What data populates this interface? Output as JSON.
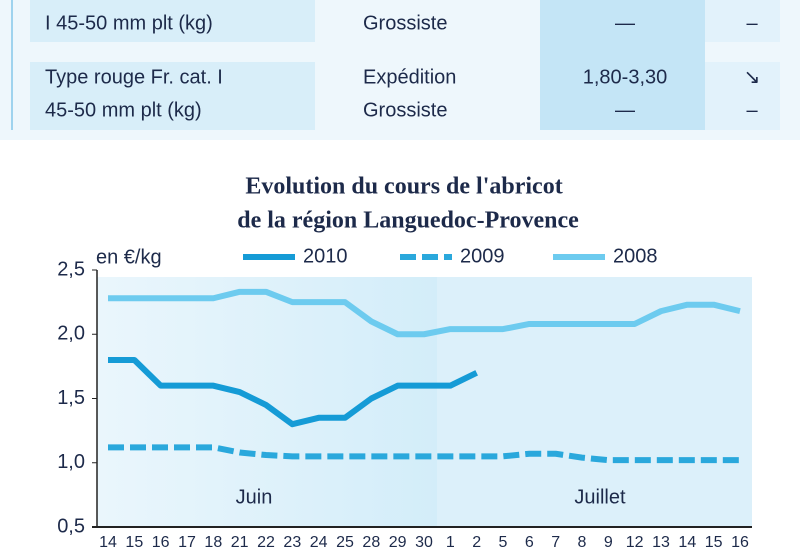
{
  "table": {
    "rows": [
      [
        [
          "I 45-50 mm plt (kg)"
        ],
        [
          "Grossiste"
        ],
        [
          "—"
        ],
        [
          "–"
        ]
      ],
      [
        [
          "Type rouge Fr. cat. I",
          "45-50 mm plt (kg)"
        ],
        [
          "Expédition",
          "Grossiste"
        ],
        [
          "1,80-3,30",
          "—"
        ],
        [
          "↘",
          "–"
        ]
      ]
    ]
  },
  "chart_data": {
    "type": "line",
    "title": [
      "Evolution du cours de l'abricot",
      "de la région Languedoc-Provence"
    ],
    "y_label": "en €/kg",
    "months": [
      "Juin",
      "Juillet"
    ],
    "categories": [
      "14",
      "15",
      "16",
      "17",
      "18",
      "21",
      "22",
      "23",
      "24",
      "25",
      "28",
      "29",
      "30",
      "1",
      "2",
      "5",
      "6",
      "7",
      "8",
      "9",
      "12",
      "13",
      "14",
      "15",
      "16"
    ],
    "ylim": [
      0.5,
      2.5
    ],
    "yticks": [
      {
        "value": 0.5,
        "label": "0,5"
      },
      {
        "value": 1.0,
        "label": "1,0"
      },
      {
        "value": 1.5,
        "label": "1,5"
      },
      {
        "value": 2.0,
        "label": "2,0"
      },
      {
        "value": 2.5,
        "label": "2,5"
      }
    ],
    "series": [
      {
        "name": "2010",
        "color": "#159bd6",
        "style": "solid",
        "values": [
          1.8,
          1.8,
          1.6,
          1.6,
          1.6,
          1.55,
          1.45,
          1.3,
          1.35,
          1.35,
          1.5,
          1.6,
          1.6,
          1.6,
          1.7,
          null,
          null,
          null,
          null,
          null,
          null,
          null,
          null,
          null,
          null
        ]
      },
      {
        "name": "2009",
        "color": "#2aa8dc",
        "style": "dashed",
        "values": [
          1.12,
          1.12,
          1.12,
          1.12,
          1.12,
          1.08,
          1.06,
          1.05,
          1.05,
          1.05,
          1.05,
          1.05,
          1.05,
          1.05,
          1.05,
          1.05,
          1.07,
          1.07,
          1.04,
          1.02,
          1.02,
          1.02,
          1.02,
          1.02,
          1.02
        ]
      },
      {
        "name": "2008",
        "color": "#6dcbef",
        "style": "solid",
        "values": [
          2.28,
          2.28,
          2.28,
          2.28,
          2.28,
          2.33,
          2.33,
          2.25,
          2.25,
          2.25,
          2.1,
          2.0,
          2.0,
          2.04,
          2.04,
          2.04,
          2.08,
          2.08,
          2.08,
          2.08,
          2.08,
          2.18,
          2.23,
          2.23,
          2.18
        ]
      }
    ]
  }
}
